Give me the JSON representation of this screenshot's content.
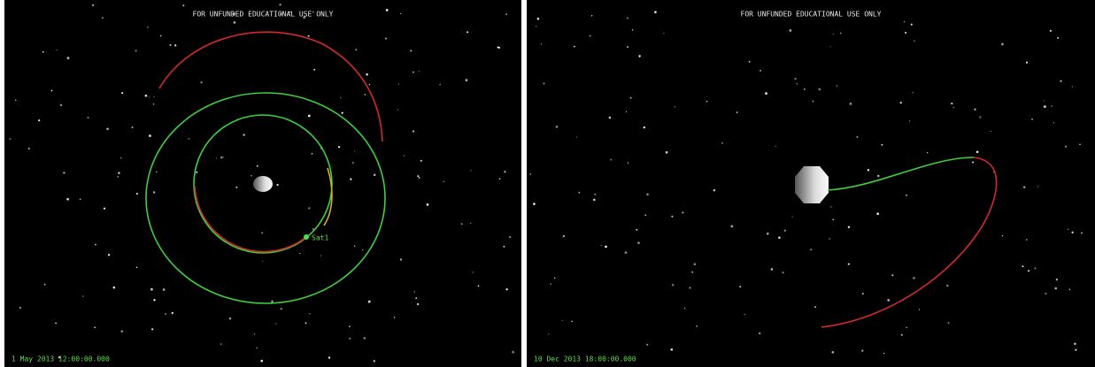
{
  "panels": [
    {
      "watermark": "FOR UNFUNDED EDUCATIONAL USE ONLY",
      "timestamp": "1 May 2013 12:00:00.000",
      "satellite_label": "Sat1"
    },
    {
      "watermark": "FOR UNFUNDED EDUCATIONAL USE ONLY",
      "timestamp": "10 Dec 2013 18:00:00.000"
    }
  ]
}
